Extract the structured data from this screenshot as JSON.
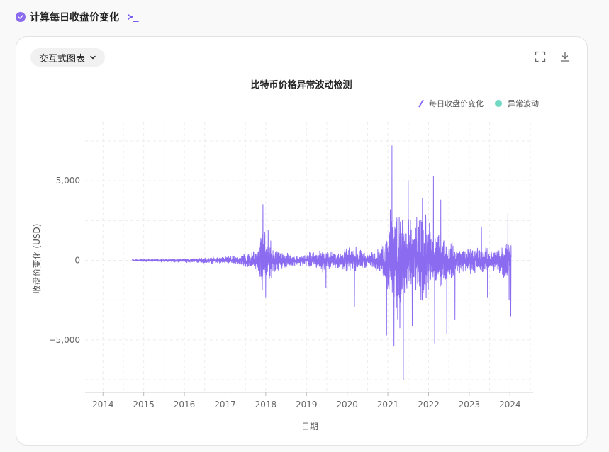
{
  "header": {
    "title": "计算每日收盘价变化",
    "terminal_glyph": "≻_"
  },
  "toolbar": {
    "dropdown_label": "交互式图表"
  },
  "colors": {
    "line": "#8b6cf0",
    "anomaly": "#6fd9c4",
    "accent": "#8b6cf0"
  },
  "chart_data": {
    "type": "line",
    "title": "比特币价格异常波动检测",
    "xlabel": "日期",
    "ylabel": "收盘价变化 (USD)",
    "xlim": [
      2013.56,
      2024.57
    ],
    "ylim": [
      -8300,
      8700
    ],
    "x_ticks": [
      2014,
      2015,
      2016,
      2017,
      2018,
      2019,
      2020,
      2021,
      2022,
      2023,
      2024
    ],
    "y_ticks": [
      {
        "value": 5000,
        "label": "5,000"
      },
      {
        "value": 0,
        "label": "0"
      },
      {
        "value": -5000,
        "label": "−5,000"
      }
    ],
    "grid": true,
    "legend_position": "top-right",
    "series": [
      {
        "name": "每日收盘价变化",
        "kind": "line",
        "data_start": 2014.72,
        "data_end": 2024.03,
        "envelope": [
          [
            2014.72,
            100
          ],
          [
            2015.5,
            130
          ],
          [
            2016.5,
            250
          ],
          [
            2017.3,
            450
          ],
          [
            2017.8,
            1100
          ],
          [
            2017.95,
            3500
          ],
          [
            2018.05,
            2300
          ],
          [
            2018.3,
            900
          ],
          [
            2018.8,
            450
          ],
          [
            2019.4,
            1100
          ],
          [
            2019.7,
            800
          ],
          [
            2020.2,
            1400
          ],
          [
            2020.5,
            600
          ],
          [
            2020.8,
            1200
          ],
          [
            2020.95,
            2600
          ],
          [
            2021.1,
            5500
          ],
          [
            2021.3,
            6500
          ],
          [
            2021.6,
            3500
          ],
          [
            2021.9,
            4500
          ],
          [
            2022.2,
            2800
          ],
          [
            2022.5,
            2000
          ],
          [
            2022.8,
            1200
          ],
          [
            2023.2,
            1400
          ],
          [
            2023.6,
            1100
          ],
          [
            2023.9,
            2200
          ],
          [
            2024.03,
            2600
          ]
        ],
        "spikes": [
          [
            2017.93,
            3500
          ],
          [
            2018.0,
            -2300
          ],
          [
            2018.06,
            1900
          ],
          [
            2019.48,
            -1700
          ],
          [
            2020.18,
            -2900
          ],
          [
            2020.97,
            -4700
          ],
          [
            2021.1,
            7200
          ],
          [
            2021.15,
            -5400
          ],
          [
            2021.38,
            -7500
          ],
          [
            2021.5,
            5000
          ],
          [
            2021.6,
            -4100
          ],
          [
            2021.85,
            3900
          ],
          [
            2022.12,
            5300
          ],
          [
            2022.15,
            -5200
          ],
          [
            2022.3,
            3800
          ],
          [
            2022.45,
            -4600
          ],
          [
            2022.65,
            -3700
          ],
          [
            2023.3,
            2100
          ],
          [
            2023.45,
            -2300
          ],
          [
            2023.95,
            3000
          ],
          [
            2023.98,
            -2500
          ],
          [
            2024.02,
            -3500
          ]
        ]
      },
      {
        "name": "异常波动",
        "kind": "scatter",
        "points": []
      }
    ]
  }
}
